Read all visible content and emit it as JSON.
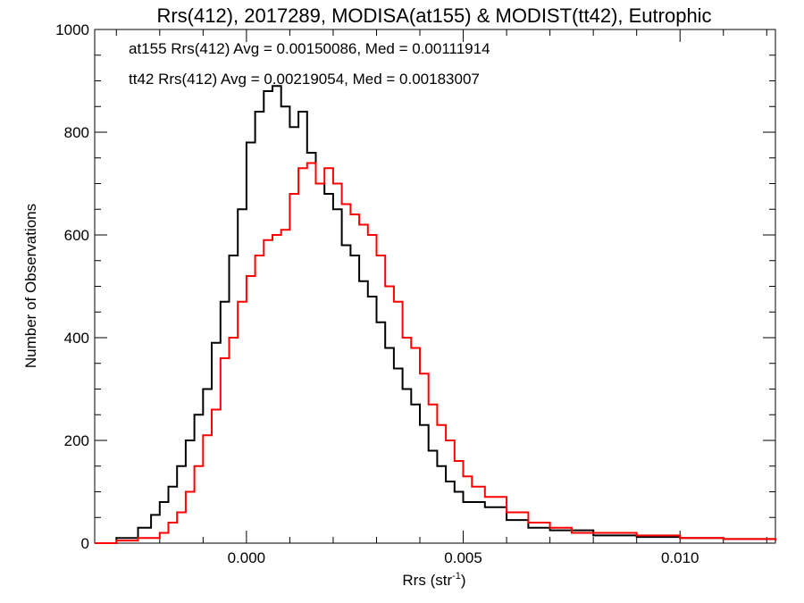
{
  "chart_data": {
    "type": "line",
    "title": "Rrs(412), 2017289, MODISA(at155) & MODIST(tt42), Eutrophic",
    "xlabel": "Rrs (str",
    "xlabel_sup": "-1",
    "xlabel_close": ")",
    "ylabel": "Number of Observations",
    "xlim": [
      -0.0035,
      0.0122
    ],
    "ylim": [
      0,
      1000
    ],
    "xticks": [
      0.0,
      0.005,
      0.01
    ],
    "xtick_labels": [
      "0.000",
      "0.005",
      "0.010"
    ],
    "yticks": [
      0,
      200,
      400,
      600,
      800,
      1000
    ],
    "ytick_labels": [
      "0",
      "200",
      "400",
      "600",
      "800",
      "1000"
    ],
    "grid": false,
    "step": true,
    "series": [
      {
        "name": "at155",
        "color": "#000000",
        "annotation": "at155 Rrs(412) Avg = 0.00150086, Med = 0.00111914",
        "x": [
          -0.0035,
          -0.003,
          -0.0025,
          -0.0022,
          -0.002,
          -0.0018,
          -0.0016,
          -0.0014,
          -0.0012,
          -0.001,
          -0.0008,
          -0.0006,
          -0.0004,
          -0.0002,
          0.0,
          0.0002,
          0.0004,
          0.0006,
          0.0008,
          0.001,
          0.0012,
          0.0014,
          0.0016,
          0.0018,
          0.002,
          0.0022,
          0.0024,
          0.0026,
          0.0028,
          0.003,
          0.0032,
          0.0034,
          0.0036,
          0.0038,
          0.004,
          0.0042,
          0.0044,
          0.0046,
          0.0048,
          0.005,
          0.0055,
          0.006,
          0.0065,
          0.007,
          0.008,
          0.009,
          0.01,
          0.011,
          0.0122
        ],
        "y": [
          0,
          10,
          30,
          55,
          80,
          110,
          150,
          200,
          250,
          300,
          390,
          470,
          560,
          650,
          780,
          840,
          880,
          890,
          850,
          810,
          840,
          760,
          700,
          680,
          650,
          580,
          560,
          510,
          480,
          430,
          380,
          340,
          300,
          270,
          230,
          180,
          150,
          120,
          100,
          80,
          70,
          45,
          30,
          25,
          15,
          12,
          10,
          8,
          5
        ]
      },
      {
        "name": "tt42",
        "color": "#ff0000",
        "annotation": "tt42 Rrs(412) Avg = 0.00219054, Med = 0.00183007",
        "x": [
          -0.0035,
          -0.003,
          -0.0025,
          -0.002,
          -0.0018,
          -0.0016,
          -0.0014,
          -0.0012,
          -0.001,
          -0.0008,
          -0.0006,
          -0.0004,
          -0.0002,
          0.0,
          0.0002,
          0.0004,
          0.0006,
          0.0008,
          0.001,
          0.0012,
          0.0014,
          0.0016,
          0.0018,
          0.002,
          0.0022,
          0.0024,
          0.0026,
          0.0028,
          0.003,
          0.0032,
          0.0034,
          0.0036,
          0.0038,
          0.004,
          0.0042,
          0.0044,
          0.0046,
          0.0048,
          0.005,
          0.0052,
          0.0055,
          0.006,
          0.0065,
          0.007,
          0.0075,
          0.008,
          0.009,
          0.01,
          0.011,
          0.0122
        ],
        "y": [
          0,
          5,
          10,
          20,
          40,
          60,
          100,
          150,
          210,
          260,
          360,
          400,
          470,
          520,
          560,
          590,
          600,
          610,
          680,
          730,
          740,
          700,
          730,
          700,
          660,
          640,
          620,
          600,
          560,
          500,
          470,
          400,
          380,
          330,
          270,
          230,
          200,
          160,
          130,
          110,
          90,
          60,
          40,
          30,
          20,
          20,
          15,
          10,
          8,
          5
        ]
      }
    ]
  }
}
